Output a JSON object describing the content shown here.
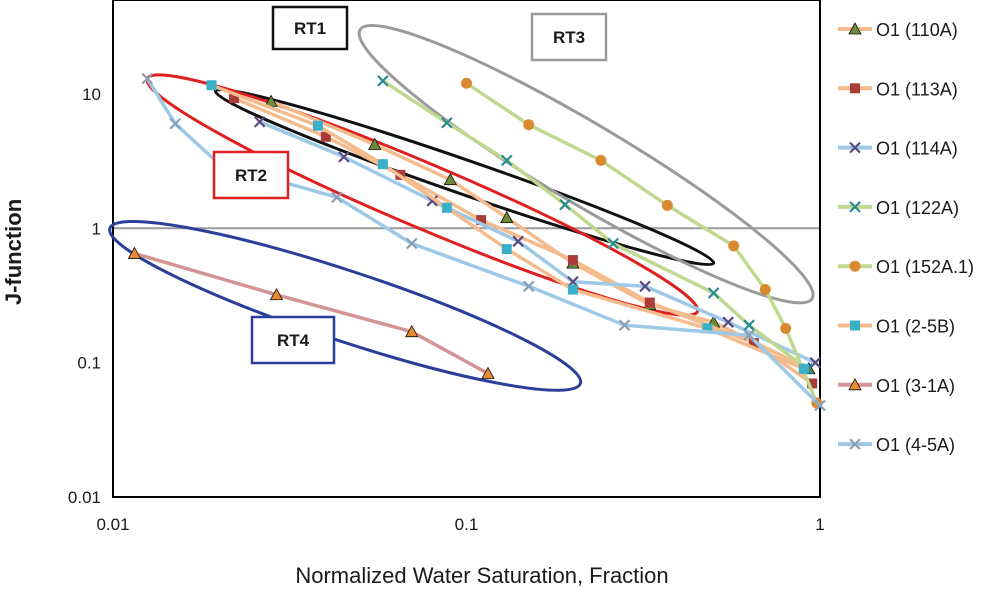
{
  "chart_data": {
    "type": "line",
    "scale": "log-log",
    "title": "",
    "xlabel": "Normalized Water Saturation, Fraction",
    "ylabel": "J-function",
    "xlim": [
      0.01,
      1
    ],
    "ylim": [
      0.01,
      50
    ],
    "x_ticks": [
      {
        "value": 0.01,
        "label": "0.01"
      },
      {
        "value": 0.1,
        "label": "0.1"
      },
      {
        "value": 1,
        "label": "1"
      }
    ],
    "y_ticks": [
      {
        "value": 0.01,
        "label": "0.01"
      },
      {
        "value": 0.1,
        "label": "0.1"
      },
      {
        "value": 1,
        "label": "1"
      },
      {
        "value": 10,
        "label": "10"
      }
    ],
    "legend_position": "right",
    "series": [
      {
        "name": "O1 (110A)",
        "color": "#f4bb8c",
        "marker": "triangle",
        "marker_color": "#6f8a3a",
        "points": [
          [
            0.028,
            8.8
          ],
          [
            0.055,
            4.2
          ],
          [
            0.09,
            2.3
          ],
          [
            0.13,
            1.2
          ],
          [
            0.2,
            0.55
          ],
          [
            0.33,
            0.27
          ],
          [
            0.5,
            0.2
          ],
          [
            0.93,
            0.09
          ]
        ]
      },
      {
        "name": "O1 (113A)",
        "color": "#f4bb8c",
        "marker": "square",
        "marker_color": "#a93c38",
        "points": [
          [
            0.022,
            9.3
          ],
          [
            0.04,
            4.8
          ],
          [
            0.065,
            2.5
          ],
          [
            0.11,
            1.15
          ],
          [
            0.2,
            0.58
          ],
          [
            0.33,
            0.28
          ],
          [
            0.65,
            0.14
          ],
          [
            0.95,
            0.07
          ]
        ]
      },
      {
        "name": "O1 (114A)",
        "color": "#9dc8e6",
        "marker": "x",
        "marker_color": "#5a4a80",
        "points": [
          [
            0.026,
            6.2
          ],
          [
            0.045,
            3.4
          ],
          [
            0.08,
            1.6
          ],
          [
            0.14,
            0.8
          ],
          [
            0.2,
            0.4
          ],
          [
            0.32,
            0.37
          ],
          [
            0.55,
            0.2
          ],
          [
            0.97,
            0.1
          ]
        ]
      },
      {
        "name": "O1 (122A)",
        "color": "#c0d890",
        "marker": "x",
        "marker_color": "#2a8a94",
        "points": [
          [
            0.058,
            12.5
          ],
          [
            0.088,
            6.1
          ],
          [
            0.13,
            3.2
          ],
          [
            0.19,
            1.5
          ],
          [
            0.26,
            0.77
          ],
          [
            0.5,
            0.33
          ],
          [
            0.63,
            0.19
          ],
          [
            0.92,
            0.09
          ]
        ]
      },
      {
        "name": "O1 (152A.1)",
        "color": "#c0d890",
        "marker": "circle",
        "marker_color": "#d98a30",
        "points": [
          [
            0.1,
            12.0
          ],
          [
            0.15,
            5.9
          ],
          [
            0.24,
            3.2
          ],
          [
            0.37,
            1.48
          ],
          [
            0.57,
            0.74
          ],
          [
            0.7,
            0.35
          ],
          [
            0.8,
            0.18
          ],
          [
            0.98,
            0.05
          ]
        ]
      },
      {
        "name": "O1 (2-5B)",
        "color": "#f4bb8c",
        "marker": "square",
        "marker_color": "#3ab0c8",
        "points": [
          [
            0.019,
            11.6
          ],
          [
            0.038,
            5.8
          ],
          [
            0.058,
            3.0
          ],
          [
            0.088,
            1.42
          ],
          [
            0.13,
            0.7
          ],
          [
            0.2,
            0.35
          ],
          [
            0.48,
            0.18
          ],
          [
            0.9,
            0.09
          ]
        ]
      },
      {
        "name": "O1 (3-1A)",
        "color": "#d49494",
        "marker": "triangle",
        "marker_color": "#e88a30",
        "points": [
          [
            0.0115,
            0.65
          ],
          [
            0.029,
            0.32
          ],
          [
            0.07,
            0.17
          ],
          [
            0.115,
            0.083
          ]
        ]
      },
      {
        "name": "O1 (4-5A)",
        "color": "#9dc8e6",
        "marker": "x",
        "marker_color": "#8aa0b0",
        "points": [
          [
            0.0125,
            13.0
          ],
          [
            0.015,
            6.0
          ],
          [
            0.02,
            3.0
          ],
          [
            0.043,
            1.7
          ],
          [
            0.07,
            0.77
          ],
          [
            0.15,
            0.37
          ],
          [
            0.28,
            0.19
          ],
          [
            0.63,
            0.16
          ],
          [
            1.0,
            0.048
          ]
        ]
      }
    ],
    "annotations": [
      {
        "label": "RT1",
        "box_color": "#111111",
        "ellipse_color": "#111111"
      },
      {
        "label": "RT2",
        "box_color": "#e02020",
        "ellipse_color": "#e02020"
      },
      {
        "label": "RT3",
        "box_color": "#9a9a9a",
        "ellipse_color": "#9a9a9a"
      },
      {
        "label": "RT4",
        "box_color": "#2a3f9a",
        "ellipse_color": "#2a3f9a"
      }
    ]
  }
}
